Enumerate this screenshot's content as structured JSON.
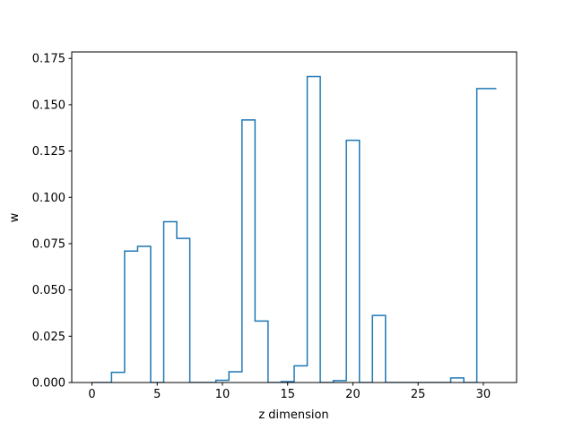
{
  "chart_data": {
    "type": "line",
    "style": "step-mid",
    "xlabel": "z dimension",
    "ylabel": "w",
    "xlim": [
      -1.55,
      32.55
    ],
    "ylim": [
      0,
      0.1785
    ],
    "xticks": [
      0,
      5,
      10,
      15,
      20,
      25,
      30
    ],
    "yticks": [
      0.0,
      0.025,
      0.05,
      0.075,
      0.1,
      0.125,
      0.15,
      0.175
    ],
    "ytick_labels": [
      "0.000",
      "0.025",
      "0.050",
      "0.075",
      "0.100",
      "0.125",
      "0.150",
      "0.175"
    ],
    "grid": false,
    "line_color": "#1f77b4",
    "series": [
      {
        "x": [
          0,
          1,
          2,
          3,
          4,
          5,
          6,
          7,
          8,
          9,
          10,
          11,
          12,
          13,
          14,
          15,
          16,
          17,
          18,
          19,
          20,
          21,
          22,
          23,
          24,
          25,
          26,
          27,
          28,
          29,
          30,
          31
        ],
        "values": [
          0.0,
          0.0,
          0.0055,
          0.071,
          0.0735,
          0.0,
          0.0868,
          0.0778,
          0.0,
          0.0,
          0.0012,
          0.0058,
          0.1418,
          0.0332,
          0.0,
          0.0005,
          0.009,
          0.1652,
          0.0,
          0.001,
          0.1308,
          0.0,
          0.0362,
          0.0,
          0.0,
          0.0,
          0.0,
          0.0,
          0.0025,
          0.0,
          0.1587,
          0.1587
        ]
      }
    ]
  }
}
